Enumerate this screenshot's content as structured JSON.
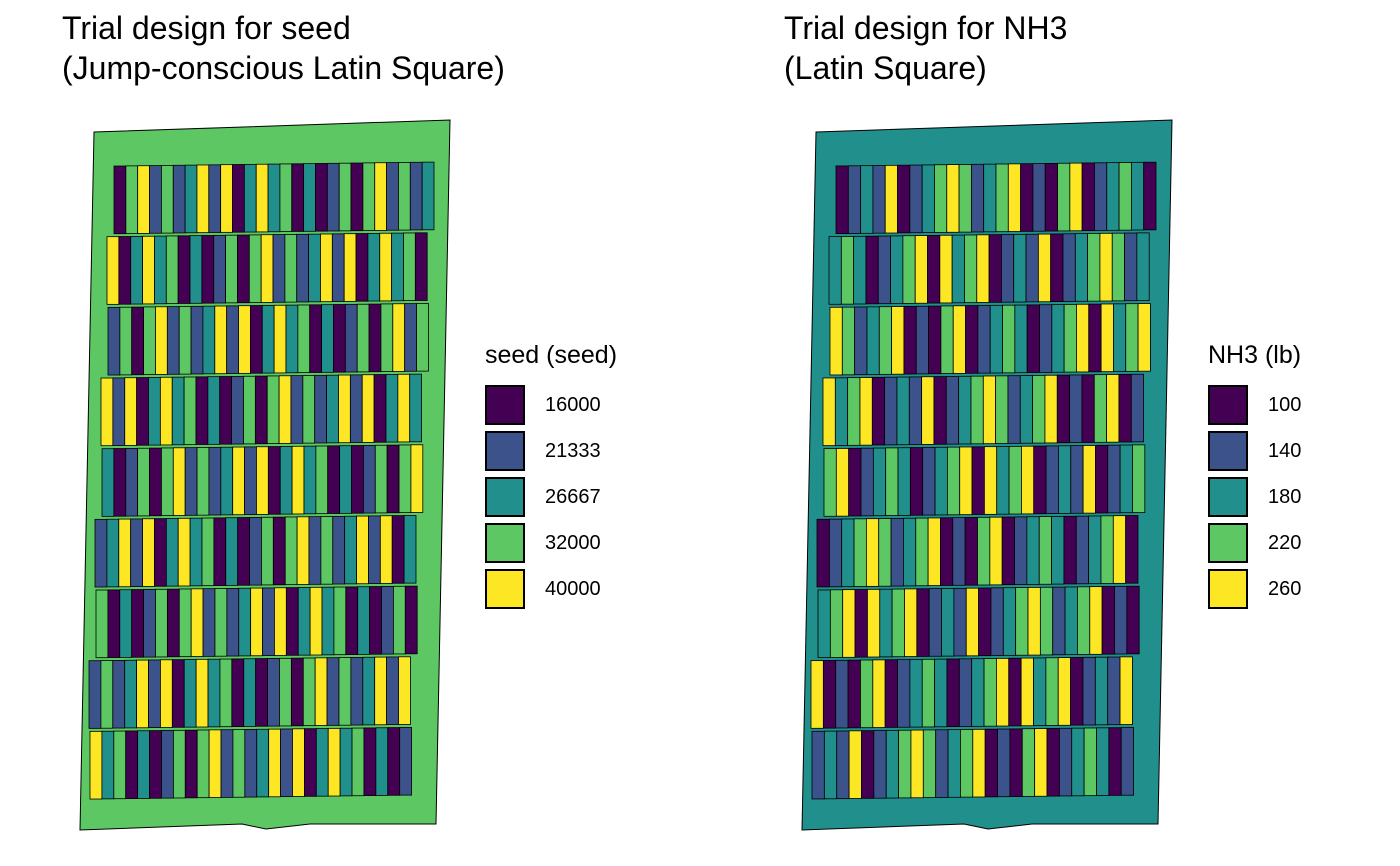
{
  "colors": {
    "c1": "#440154",
    "c2": "#3b528b",
    "c3": "#21908c",
    "c4": "#5dc863",
    "c5": "#fde725"
  },
  "panels": [
    {
      "id": "seed",
      "title_line1": "Trial design for seed",
      "title_line2": "(Jump-conscious Latin Square)",
      "legend_title": "seed (seed)",
      "legend_items": [
        {
          "label": "16000",
          "color": "#440154"
        },
        {
          "label": "21333",
          "color": "#3b528b"
        },
        {
          "label": "26667",
          "color": "#21908c"
        },
        {
          "label": "32000",
          "color": "#5dc863"
        },
        {
          "label": "40000",
          "color": "#fde725"
        }
      ],
      "background_rate": "32000",
      "pattern": "jump-conscious",
      "rows": 9,
      "plots_per_row": 27
    },
    {
      "id": "nh3",
      "title_line1": "Trial design for NH3",
      "title_line2": "(Latin Square)",
      "legend_title": "NH3 (lb)",
      "legend_items": [
        {
          "label": "100",
          "color": "#440154"
        },
        {
          "label": "140",
          "color": "#3b528b"
        },
        {
          "label": "180",
          "color": "#21908c"
        },
        {
          "label": "220",
          "color": "#5dc863"
        },
        {
          "label": "260",
          "color": "#fde725"
        }
      ],
      "background_rate": "180",
      "pattern": "latin-square",
      "rows": 9,
      "plots_per_row": 26
    }
  ]
}
